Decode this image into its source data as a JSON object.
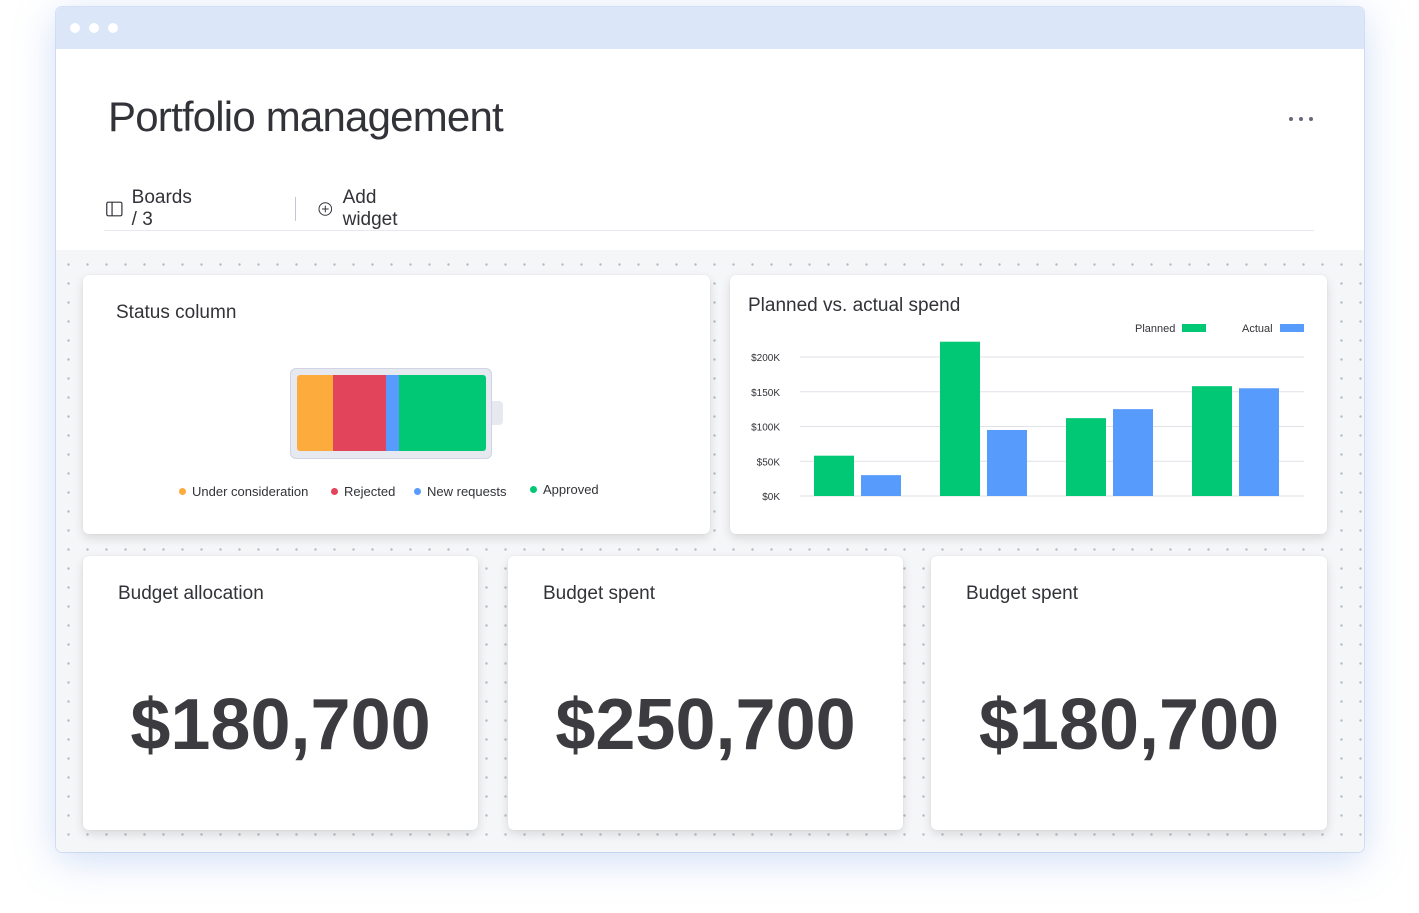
{
  "window": {
    "title": "Portfolio management",
    "menu_icon": "more-horizontal-icon"
  },
  "toolbar": {
    "boards_label": "Boards / 3",
    "add_widget_label": "Add widget"
  },
  "status_widget": {
    "title": "Status column",
    "segments": [
      {
        "label": "Under consideration",
        "color": "#fdab3d",
        "share": 0.19
      },
      {
        "label": "Rejected",
        "color": "#e2445c",
        "share": 0.28
      },
      {
        "label": "New requests",
        "color": "#579bfc",
        "share": 0.07
      },
      {
        "label": "Approved",
        "color": "#00c875",
        "share": 0.46
      }
    ]
  },
  "spend_widget": {
    "title": "Planned vs. actual spend",
    "chart_data": {
      "type": "bar",
      "categories": [
        "",
        "",
        "",
        ""
      ],
      "series": [
        {
          "name": "Planned",
          "color": "#00c875",
          "values": [
            58,
            222,
            112,
            158
          ]
        },
        {
          "name": "Actual",
          "color": "#579bfc",
          "values": [
            30,
            95,
            125,
            155
          ]
        }
      ],
      "ylim": [
        0,
        200
      ],
      "yticks": [
        {
          "value": 200,
          "label": "$200K"
        },
        {
          "value": 150,
          "label": "$150K"
        },
        {
          "value": 100,
          "label": "$100K"
        },
        {
          "value": 50,
          "label": "$50K"
        },
        {
          "value": 0,
          "label": "$0K"
        }
      ],
      "grid": true,
      "legend_position": "top-right"
    }
  },
  "number_widgets": [
    {
      "title": "Budget allocation",
      "value": "$180,700"
    },
    {
      "title": "Budget spent",
      "value": "$250,700"
    },
    {
      "title": "Budget spent",
      "value": "$180,700"
    }
  ]
}
